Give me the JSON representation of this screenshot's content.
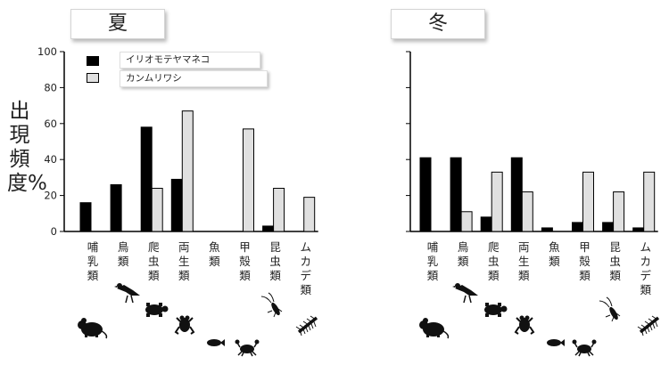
{
  "y_axis_label": "出現頻度%",
  "legend": [
    {
      "label": "イリオモテヤマネコ",
      "color": "#000000"
    },
    {
      "label": "カンムリワシ",
      "color": "#e0e0e0"
    }
  ],
  "icons": [
    "mouse-silhouette-icon",
    "bird-silhouette-icon",
    "turtle-silhouette-icon",
    "frog-silhouette-icon",
    "fish-silhouette-icon",
    "crab-silhouette-icon",
    "insect-silhouette-icon",
    "centipede-silhouette-icon"
  ],
  "chart_data": [
    {
      "type": "bar",
      "title": "夏",
      "categories": [
        "哺乳類",
        "鳥類",
        "爬虫類",
        "両生類",
        "魚類",
        "甲殻類",
        "昆虫類",
        "ムカデ類"
      ],
      "series": [
        {
          "name": "イリオモテヤマネコ",
          "values": [
            16,
            26,
            58,
            29,
            0,
            0,
            3,
            0
          ]
        },
        {
          "name": "カンムリワシ",
          "values": [
            0,
            0,
            24,
            67,
            0,
            57,
            24,
            19
          ]
        }
      ],
      "yticks": [
        0,
        20,
        40,
        60,
        80,
        100
      ],
      "ylim": [
        0,
        100
      ],
      "ylabel": "出現頻度%",
      "grid": false,
      "legend_position": "top-left"
    },
    {
      "type": "bar",
      "title": "冬",
      "categories": [
        "哺乳類",
        "鳥類",
        "爬虫類",
        "両生類",
        "魚類",
        "甲殻類",
        "昆虫類",
        "ムカデ類"
      ],
      "series": [
        {
          "name": "イリオモテヤマネコ",
          "values": [
            41,
            41,
            8,
            41,
            2,
            5,
            5,
            2
          ]
        },
        {
          "name": "カンムリワシ",
          "values": [
            0,
            11,
            33,
            22,
            0,
            33,
            22,
            33
          ]
        }
      ],
      "yticks": [
        0,
        20,
        40,
        60,
        80,
        100
      ],
      "ylim": [
        0,
        100
      ],
      "grid": false,
      "legend_position": "none"
    }
  ]
}
